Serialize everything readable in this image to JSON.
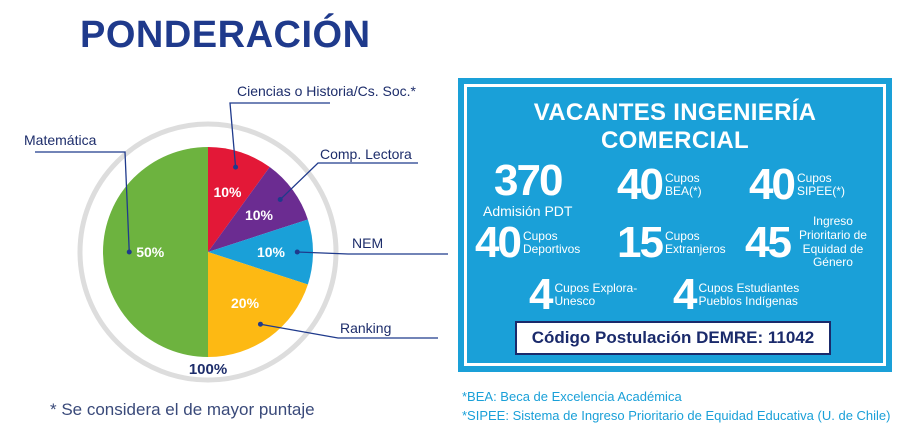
{
  "header": {
    "title": "PONDERACIÓN"
  },
  "chart_data": {
    "type": "pie",
    "title": "PONDERACIÓN",
    "total_label": "100%",
    "slices": [
      {
        "name": "Matemática",
        "value": 50,
        "label": "50%",
        "color": "#6db33f"
      },
      {
        "name": "Ciencias o Historia/Cs. Soc.*",
        "value": 10,
        "label": "10%",
        "color": "#e31837"
      },
      {
        "name": "Comp. Lectora",
        "value": 10,
        "label": "10%",
        "color": "#6b2c91"
      },
      {
        "name": "NEM",
        "value": 10,
        "label": "10%",
        "color": "#1aa0d8"
      },
      {
        "name": "Ranking",
        "value": 20,
        "label": "20%",
        "color": "#fdb913"
      }
    ]
  },
  "footnote": "* Se considera el de mayor puntaje",
  "vacantes": {
    "title": "VACANTES INGENIERÍA COMERCIAL",
    "admision": {
      "number": "370",
      "label": "Admisión PDT"
    },
    "bea": {
      "number": "40",
      "label": "Cupos BEA(*)"
    },
    "sipee": {
      "number": "40",
      "label": "Cupos SIPEE(*)"
    },
    "deportivos": {
      "number": "40",
      "label": "Cupos Deportivos"
    },
    "extranjeros": {
      "number": "15",
      "label": "Cupos Extranjeros"
    },
    "equidad": {
      "number": "45",
      "label": "Ingreso Prioritario de Equidad de Género"
    },
    "explora": {
      "number": "4",
      "label": "Cupos Explora-Unesco"
    },
    "pueblos": {
      "number": "4",
      "label": "Cupos Estudiantes Pueblos Indígenas"
    },
    "codigo": "Código Postulación DEMRE: 11042"
  },
  "notes": [
    "*BEA: Beca de Excelencia Académica",
    "*SIPEE: Sistema de Ingreso Prioritario de Equidad Educativa (U. de Chile)"
  ],
  "colors": {
    "title": "#1f3a8c",
    "panel": "#1aa0d8",
    "line": "#1f3a8c"
  }
}
